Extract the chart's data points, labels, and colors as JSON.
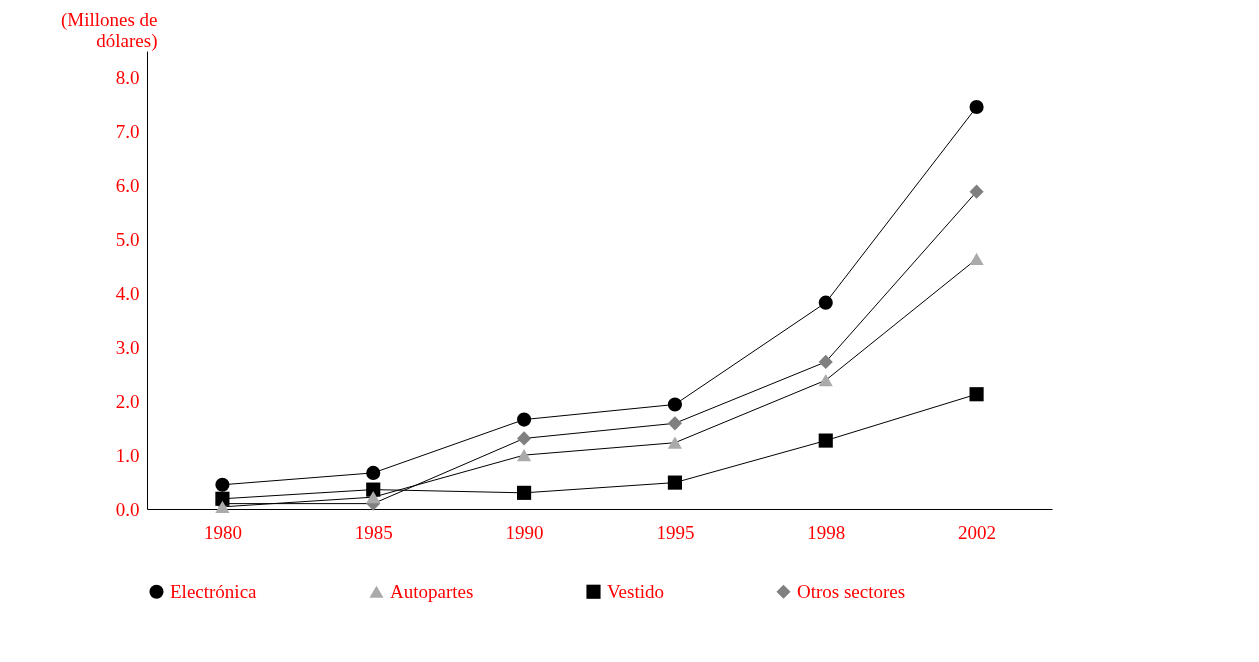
{
  "chart_data": {
    "type": "line",
    "ylabel": "(Millones de dólares)",
    "categories": [
      "1980",
      "1985",
      "1990",
      "1995",
      "1998",
      "2002"
    ],
    "series": [
      {
        "name": "Electrónica",
        "color": "#000000",
        "marker": "circle",
        "values": [
          0.45,
          0.67,
          1.66,
          1.94,
          3.83,
          7.46
        ]
      },
      {
        "name": "Autopartes",
        "color": "#aaaaaa",
        "marker": "triangle",
        "values": [
          0.04,
          0.22,
          1.0,
          1.23,
          2.39,
          4.64
        ]
      },
      {
        "name": "Vestido",
        "color": "#000000",
        "marker": "square",
        "values": [
          0.19,
          0.36,
          0.3,
          0.49,
          1.27,
          2.13
        ]
      },
      {
        "name": "Otros sectores",
        "color": "#808080",
        "marker": "diamond",
        "values": [
          0.1,
          0.1,
          1.31,
          1.59,
          2.73,
          5.89
        ]
      }
    ],
    "ylim": [
      0,
      8.5
    ],
    "yticks": [
      {
        "value": 0,
        "label": "0.0"
      },
      {
        "value": 1,
        "label": "1.0"
      },
      {
        "value": 2,
        "label": "2.0"
      },
      {
        "value": 3,
        "label": "3.0"
      },
      {
        "value": 4,
        "label": "4.0"
      },
      {
        "value": 5,
        "label": "5.0"
      },
      {
        "value": 6,
        "label": "6.0"
      },
      {
        "value": 7,
        "label": "7.0"
      },
      {
        "value": 8,
        "label": "8.0"
      }
    ],
    "grid": false,
    "legend": "bottom"
  }
}
